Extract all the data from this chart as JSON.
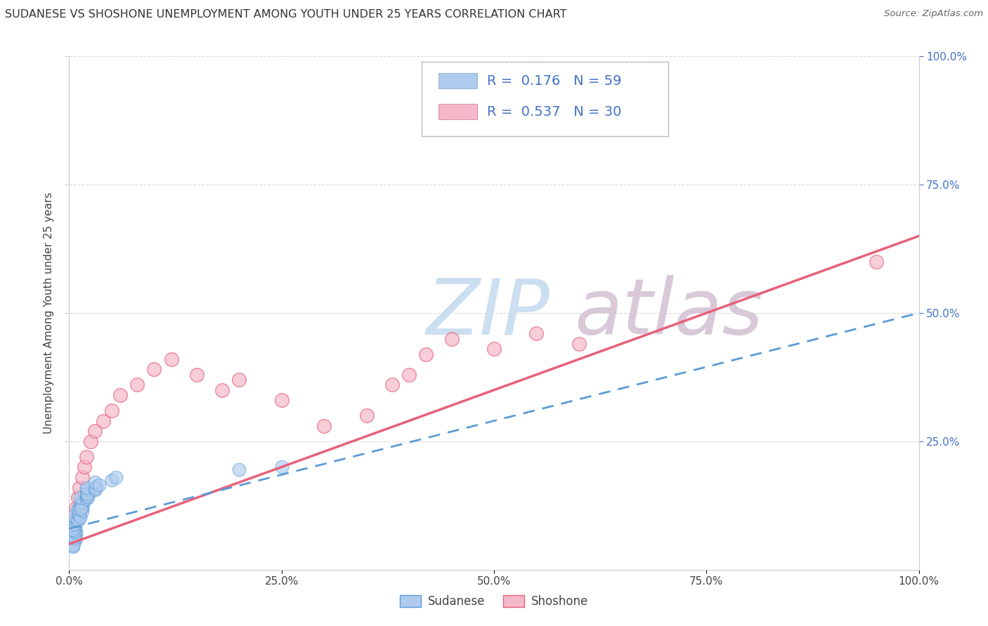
{
  "title": "SUDANESE VS SHOSHONE UNEMPLOYMENT AMONG YOUTH UNDER 25 YEARS CORRELATION CHART",
  "source": "Source: ZipAtlas.com",
  "ylabel": "Unemployment Among Youth under 25 years",
  "xlim": [
    0,
    1.0
  ],
  "ylim": [
    0,
    1.0
  ],
  "xtick_labels": [
    "0.0%",
    "25.0%",
    "50.0%",
    "75.0%",
    "100.0%"
  ],
  "xtick_vals": [
    0.0,
    0.25,
    0.5,
    0.75,
    1.0
  ],
  "right_ytick_labels": [
    "100.0%",
    "75.0%",
    "50.0%",
    "25.0%"
  ],
  "right_ytick_vals": [
    1.0,
    0.75,
    0.5,
    0.25
  ],
  "sudanese_R": 0.176,
  "sudanese_N": 59,
  "shoshone_R": 0.537,
  "shoshone_N": 30,
  "sudanese_color": "#aecbee",
  "shoshone_color": "#f5b8c8",
  "sudanese_line_color": "#5b9bd5",
  "shoshone_line_color": "#e8607a",
  "sudanese_x": [
    0.005,
    0.007,
    0.008,
    0.006,
    0.005,
    0.006,
    0.007,
    0.008,
    0.005,
    0.006,
    0.007,
    0.006,
    0.005,
    0.007,
    0.006,
    0.005,
    0.006,
    0.007,
    0.008,
    0.005,
    0.01,
    0.012,
    0.011,
    0.013,
    0.01,
    0.012,
    0.011,
    0.01,
    0.013,
    0.012,
    0.015,
    0.016,
    0.014,
    0.015,
    0.016,
    0.014,
    0.015,
    0.016,
    0.014,
    0.013,
    0.02,
    0.022,
    0.021,
    0.02,
    0.022,
    0.021,
    0.02,
    0.022,
    0.021,
    0.02,
    0.03,
    0.032,
    0.031,
    0.03,
    0.035,
    0.05,
    0.055,
    0.25,
    0.2
  ],
  "sudanese_y": [
    0.05,
    0.06,
    0.07,
    0.055,
    0.045,
    0.065,
    0.058,
    0.072,
    0.048,
    0.062,
    0.08,
    0.075,
    0.085,
    0.09,
    0.082,
    0.078,
    0.088,
    0.095,
    0.1,
    0.105,
    0.1,
    0.11,
    0.115,
    0.105,
    0.095,
    0.112,
    0.108,
    0.118,
    0.102,
    0.122,
    0.12,
    0.13,
    0.125,
    0.115,
    0.135,
    0.128,
    0.122,
    0.132,
    0.118,
    0.14,
    0.14,
    0.145,
    0.15,
    0.138,
    0.148,
    0.143,
    0.155,
    0.142,
    0.147,
    0.16,
    0.155,
    0.162,
    0.158,
    0.17,
    0.165,
    0.175,
    0.18,
    0.2,
    0.195
  ],
  "shoshone_x": [
    0.004,
    0.006,
    0.008,
    0.01,
    0.012,
    0.015,
    0.018,
    0.02,
    0.025,
    0.03,
    0.04,
    0.05,
    0.06,
    0.08,
    0.1,
    0.12,
    0.15,
    0.18,
    0.2,
    0.25,
    0.3,
    0.35,
    0.38,
    0.4,
    0.42,
    0.45,
    0.5,
    0.55,
    0.6,
    0.95
  ],
  "shoshone_y": [
    0.075,
    0.1,
    0.12,
    0.14,
    0.16,
    0.18,
    0.2,
    0.22,
    0.25,
    0.27,
    0.29,
    0.31,
    0.34,
    0.36,
    0.39,
    0.41,
    0.38,
    0.35,
    0.37,
    0.33,
    0.28,
    0.3,
    0.36,
    0.38,
    0.42,
    0.45,
    0.43,
    0.46,
    0.44,
    0.6
  ],
  "watermark_zip_color": "#ccdff0",
  "watermark_atlas_color": "#d8c8d8",
  "background_color": "#ffffff",
  "grid_color": "#d0d0d0"
}
